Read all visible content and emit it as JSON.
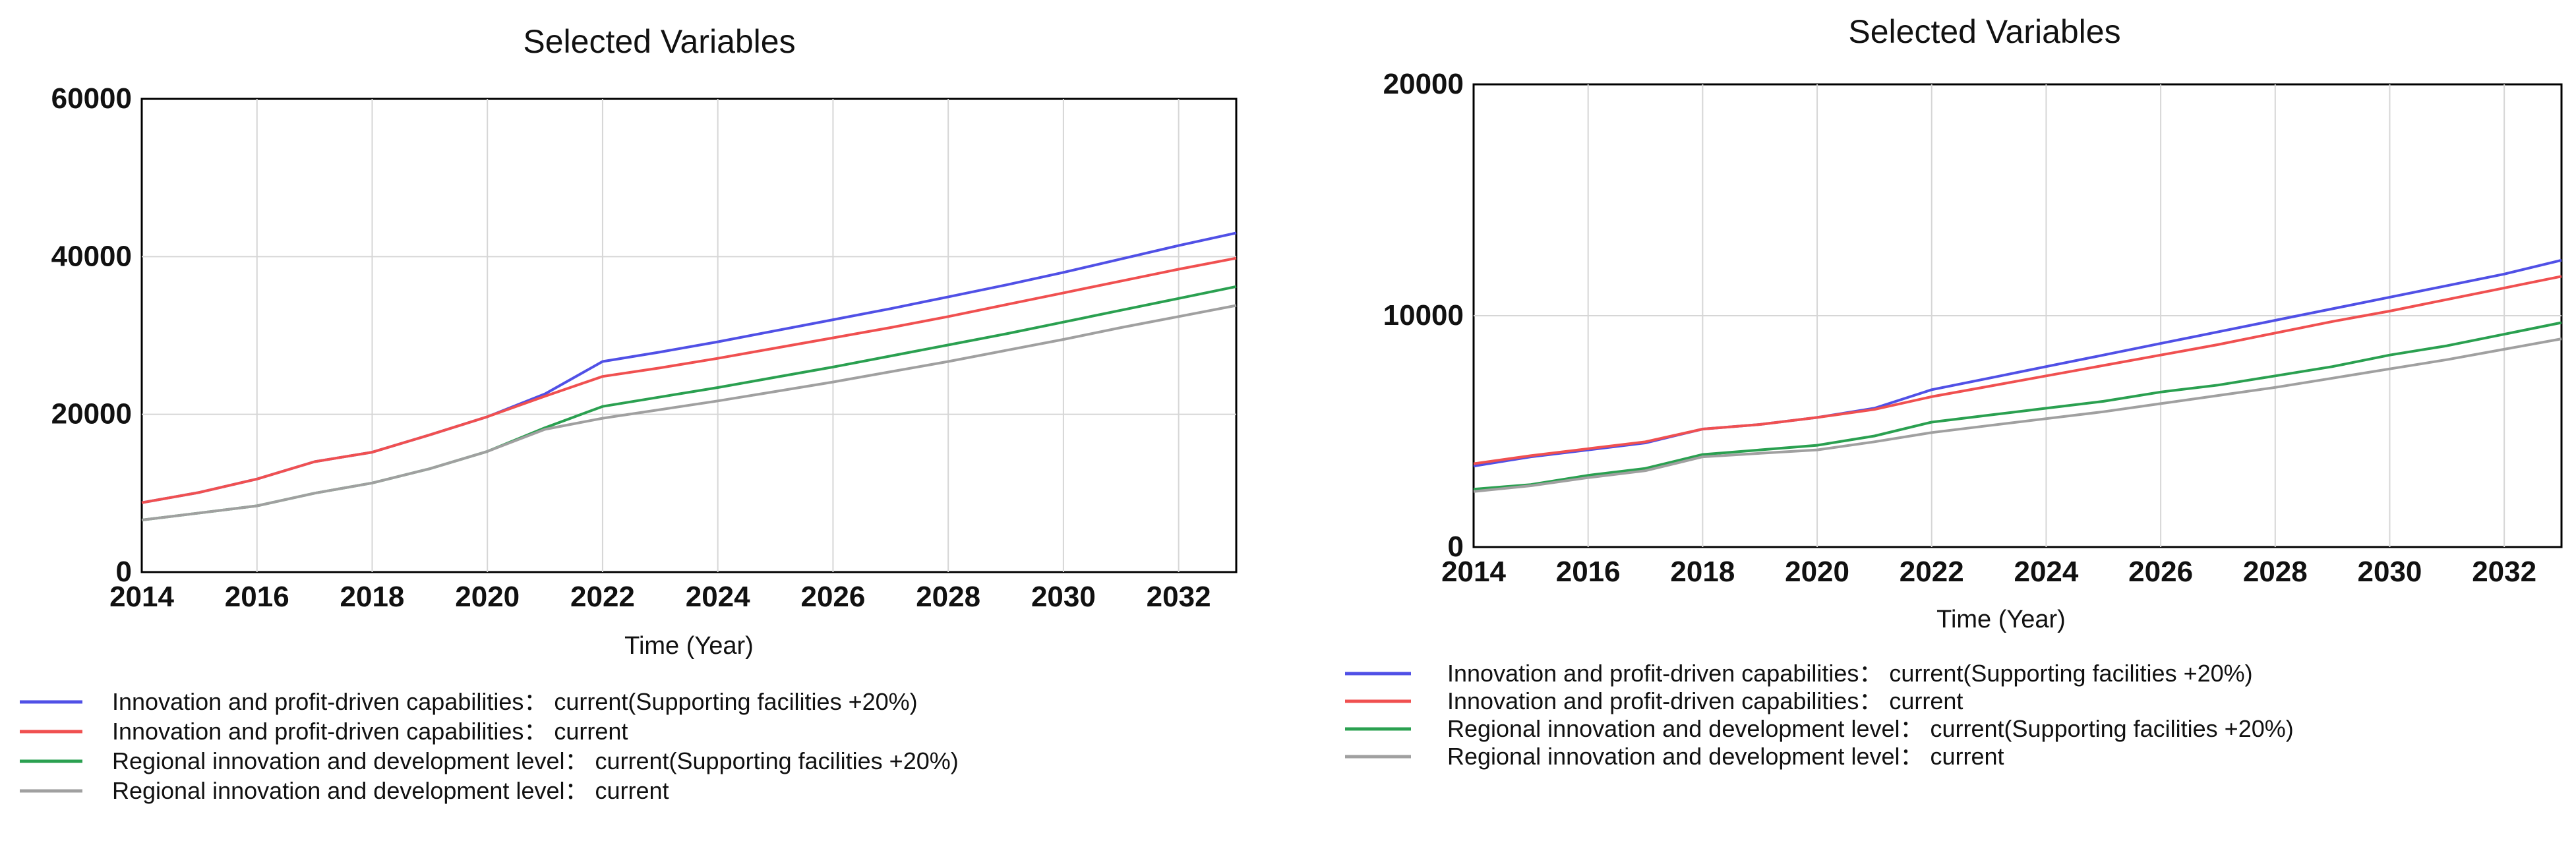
{
  "chart_data": [
    {
      "type": "line",
      "title": "Selected Variables",
      "xlabel": "Time (Year)",
      "ylabel": "",
      "xlim": [
        2014,
        2033
      ],
      "ylim": [
        0,
        60000
      ],
      "x": [
        2014,
        2015,
        2016,
        2017,
        2018,
        2019,
        2020,
        2021,
        2022,
        2023,
        2024,
        2025,
        2026,
        2027,
        2028,
        2029,
        2030,
        2031,
        2032,
        2033
      ],
      "xticks": [
        "2014",
        "2016",
        "2018",
        "2020",
        "2022",
        "2024",
        "2026",
        "2028",
        "2030",
        "2032"
      ],
      "xtick_values": [
        2014,
        2016,
        2018,
        2020,
        2022,
        2024,
        2026,
        2028,
        2030,
        2032
      ],
      "yticks": [
        "0",
        "20000",
        "40000",
        "60000"
      ],
      "ytick_values": [
        0,
        20000,
        40000,
        60000
      ],
      "series": [
        {
          "name": "Innovation and profit-driven capabilities： current(Supporting facilities +20%)",
          "color": "#5050e6",
          "values": [
            8800,
            10100,
            11800,
            14000,
            15200,
            17400,
            19700,
            22600,
            26700,
            27900,
            29200,
            30600,
            32000,
            33400,
            34900,
            36400,
            38000,
            39700,
            41400,
            43000
          ]
        },
        {
          "name": "Innovation and profit-driven capabilities： current",
          "color": "#f05050",
          "values": [
            8800,
            10100,
            11800,
            14000,
            15200,
            17400,
            19700,
            22300,
            24800,
            25900,
            27100,
            28400,
            29700,
            31000,
            32400,
            33900,
            35400,
            36900,
            38400,
            39800
          ]
        },
        {
          "name": "Regional innovation and development level： current(Supporting facilities +20%)",
          "color": "#2aa050",
          "values": [
            6600,
            7500,
            8400,
            10000,
            11300,
            13100,
            15300,
            18300,
            21000,
            22200,
            23400,
            24700,
            26000,
            27400,
            28800,
            30200,
            31700,
            33200,
            34700,
            36200
          ]
        },
        {
          "name": "Regional innovation and development level： current",
          "color": "#a0a0a0",
          "values": [
            6600,
            7500,
            8400,
            10000,
            11300,
            13100,
            15300,
            18100,
            19500,
            20600,
            21700,
            22900,
            24100,
            25400,
            26700,
            28100,
            29500,
            31000,
            32400,
            33800
          ]
        }
      ]
    },
    {
      "type": "line",
      "title": "Selected Variables",
      "xlabel": "Time (Year)",
      "ylabel": "",
      "xlim": [
        2014,
        2033
      ],
      "ylim": [
        0,
        20000
      ],
      "x": [
        2014,
        2015,
        2016,
        2017,
        2018,
        2019,
        2020,
        2021,
        2022,
        2023,
        2024,
        2025,
        2026,
        2027,
        2028,
        2029,
        2030,
        2031,
        2032,
        2033
      ],
      "xticks": [
        "2014",
        "2016",
        "2018",
        "2020",
        "2022",
        "2024",
        "2026",
        "2028",
        "2030",
        "2032"
      ],
      "xtick_values": [
        2014,
        2016,
        2018,
        2020,
        2022,
        2024,
        2026,
        2028,
        2030,
        2032
      ],
      "yticks": [
        "0",
        "10000",
        "20000"
      ],
      "ytick_values": [
        0,
        10000,
        20000
      ],
      "series": [
        {
          "name": "Innovation and profit-driven capabilities： current(Supporting facilities +20%)",
          "color": "#5050e6",
          "values": [
            3500,
            3900,
            4200,
            4500,
            5100,
            5300,
            5600,
            6000,
            6800,
            7300,
            7800,
            8300,
            8800,
            9300,
            9800,
            10300,
            10800,
            11300,
            11800,
            12400
          ]
        },
        {
          "name": "Innovation and profit-driven capabilities： current",
          "color": "#f05050",
          "values": [
            3600,
            3950,
            4250,
            4550,
            5100,
            5300,
            5600,
            5950,
            6500,
            6950,
            7400,
            7850,
            8300,
            8750,
            9250,
            9750,
            10200,
            10700,
            11200,
            11700
          ]
        },
        {
          "name": "Regional innovation and development level： current(Supporting facilities +20%)",
          "color": "#2aa050",
          "values": [
            2500,
            2700,
            3100,
            3400,
            4000,
            4200,
            4400,
            4800,
            5400,
            5700,
            6000,
            6300,
            6700,
            7000,
            7400,
            7800,
            8300,
            8700,
            9200,
            9700
          ]
        },
        {
          "name": "Regional innovation and development level： current",
          "color": "#a0a0a0",
          "values": [
            2400,
            2650,
            3000,
            3300,
            3900,
            4050,
            4200,
            4550,
            4950,
            5250,
            5550,
            5850,
            6200,
            6550,
            6900,
            7300,
            7700,
            8100,
            8550,
            9000
          ]
        }
      ]
    }
  ]
}
